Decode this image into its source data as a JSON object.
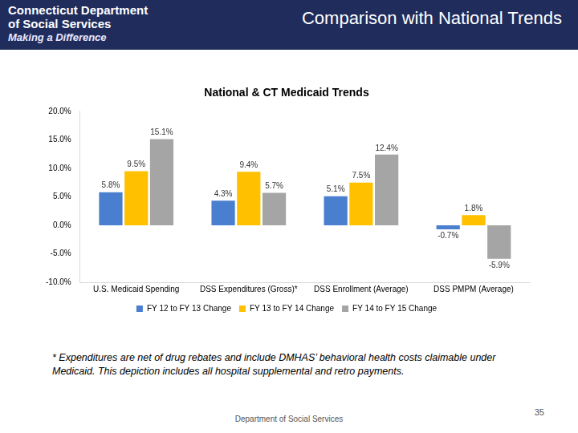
{
  "slide": {
    "logo": [
      "Connecticut Department",
      "of Social Services",
      "Making a Difference"
    ],
    "title": "Comparison with National Trends",
    "footnote": "* Expenditures are net of drug rebates and include DMHAS’ behavioral health costs claimable under Medicaid. This depiction includes all hospital supplemental and retro payments.",
    "footer": "Department of Social Services",
    "page_number": "35"
  },
  "chart_data": {
    "type": "bar",
    "title": "National & CT Medicaid Trends",
    "categories": [
      "U.S. Medicaid Spending",
      "DSS Expenditures (Gross)*",
      "DSS Enrollment (Average)",
      "DSS PMPM (Average)"
    ],
    "series": [
      {
        "name": "FY 12 to FY 13 Change",
        "color": "#4a7fcf",
        "values": [
          5.8,
          4.3,
          5.1,
          -0.7
        ],
        "value_labels": [
          "5.8%",
          "4.3%",
          "5.1%",
          "-0.7%"
        ]
      },
      {
        "name": "FY 13 to FY 14 Change",
        "color": "#ffc000",
        "values": [
          9.5,
          9.4,
          7.5,
          1.8
        ],
        "value_labels": [
          "9.5%",
          "9.4%",
          "7.5%",
          "1.8%"
        ]
      },
      {
        "name": "FY 14 to FY 15 Change",
        "color": "#a5a5a5",
        "values": [
          15.1,
          5.7,
          12.4,
          -5.9
        ],
        "value_labels": [
          "15.1%",
          "5.7%",
          "12.4%",
          "-5.9%"
        ]
      }
    ],
    "ylim": [
      -10,
      20
    ],
    "yticks": [
      {
        "value": -10,
        "label": "-10.0%"
      },
      {
        "value": -5,
        "label": "-5.0%"
      },
      {
        "value": 0,
        "label": "0.0%"
      },
      {
        "value": 5,
        "label": "5.0%"
      },
      {
        "value": 10,
        "label": "10.0%"
      },
      {
        "value": 15,
        "label": "15.0%"
      },
      {
        "value": 20,
        "label": "20.0%"
      }
    ],
    "grid": false,
    "legend": "bottom",
    "data_labels": true
  }
}
